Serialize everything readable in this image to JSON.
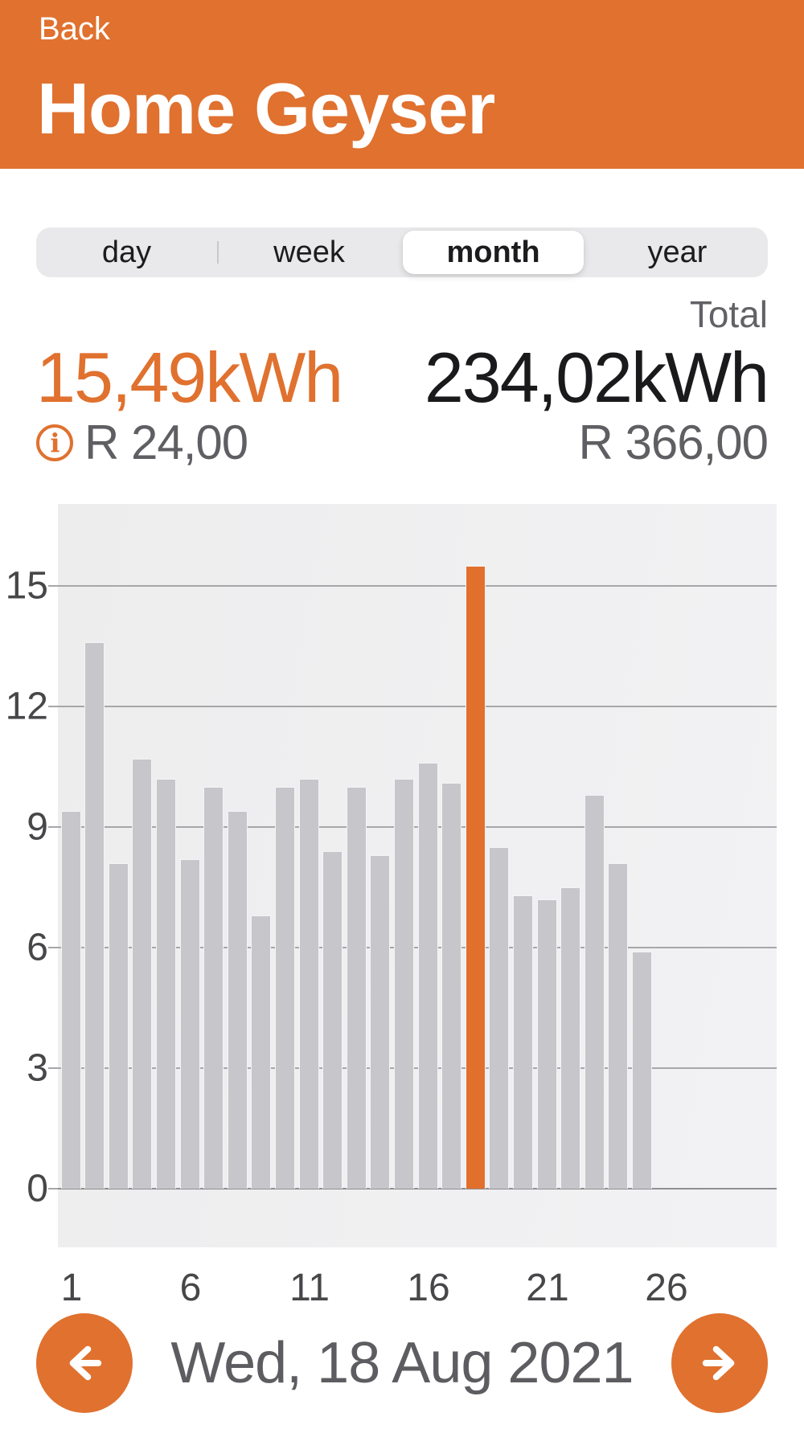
{
  "colors": {
    "accent": "#e0712f",
    "accent_bar": "#e2702d",
    "bar": "#c7c6cb",
    "plot_bg": "#efeff0",
    "grid": "#a7a7a9",
    "zero_line": "#8f8f92",
    "tab_bg": "#e9e9eb"
  },
  "header": {
    "back_label": "Back",
    "title": "Home Geyser"
  },
  "tabs": {
    "items": [
      "day",
      "week",
      "month",
      "year"
    ],
    "selected": "month"
  },
  "stats": {
    "selected": {
      "energy": "15,49kWh",
      "cost": "R 24,00",
      "info_icon": "info-circle-icon"
    },
    "total": {
      "label": "Total",
      "energy": "234,02kWh",
      "cost": "R 366,00"
    }
  },
  "chart_data": {
    "type": "bar",
    "title": "",
    "xlabel": "",
    "ylabel": "",
    "unit": "kWh",
    "x": [
      1,
      2,
      3,
      4,
      5,
      6,
      7,
      8,
      9,
      10,
      11,
      12,
      13,
      14,
      15,
      16,
      17,
      18,
      19,
      20,
      21,
      22,
      23,
      24,
      25
    ],
    "values": [
      9.4,
      13.6,
      8.1,
      10.7,
      10.2,
      8.2,
      10.0,
      9.4,
      6.8,
      10.0,
      10.2,
      8.4,
      10.0,
      8.3,
      10.2,
      10.6,
      10.1,
      15.49,
      8.5,
      7.3,
      7.2,
      7.5,
      9.8,
      8.1,
      5.9
    ],
    "highlighted_x": 18,
    "highlighted_value": 15.49,
    "x_ticks": [
      1,
      6,
      11,
      16,
      21,
      26
    ],
    "y_ticks": [
      0,
      3,
      6,
      9,
      12,
      15
    ],
    "x_domain": [
      1,
      31
    ],
    "ylim": [
      0,
      17
    ],
    "grid": true,
    "legend": "none"
  },
  "footer": {
    "prev_icon": "arrow-left-icon",
    "next_icon": "arrow-right-icon",
    "date": "Wed, 18 Aug 2021"
  }
}
